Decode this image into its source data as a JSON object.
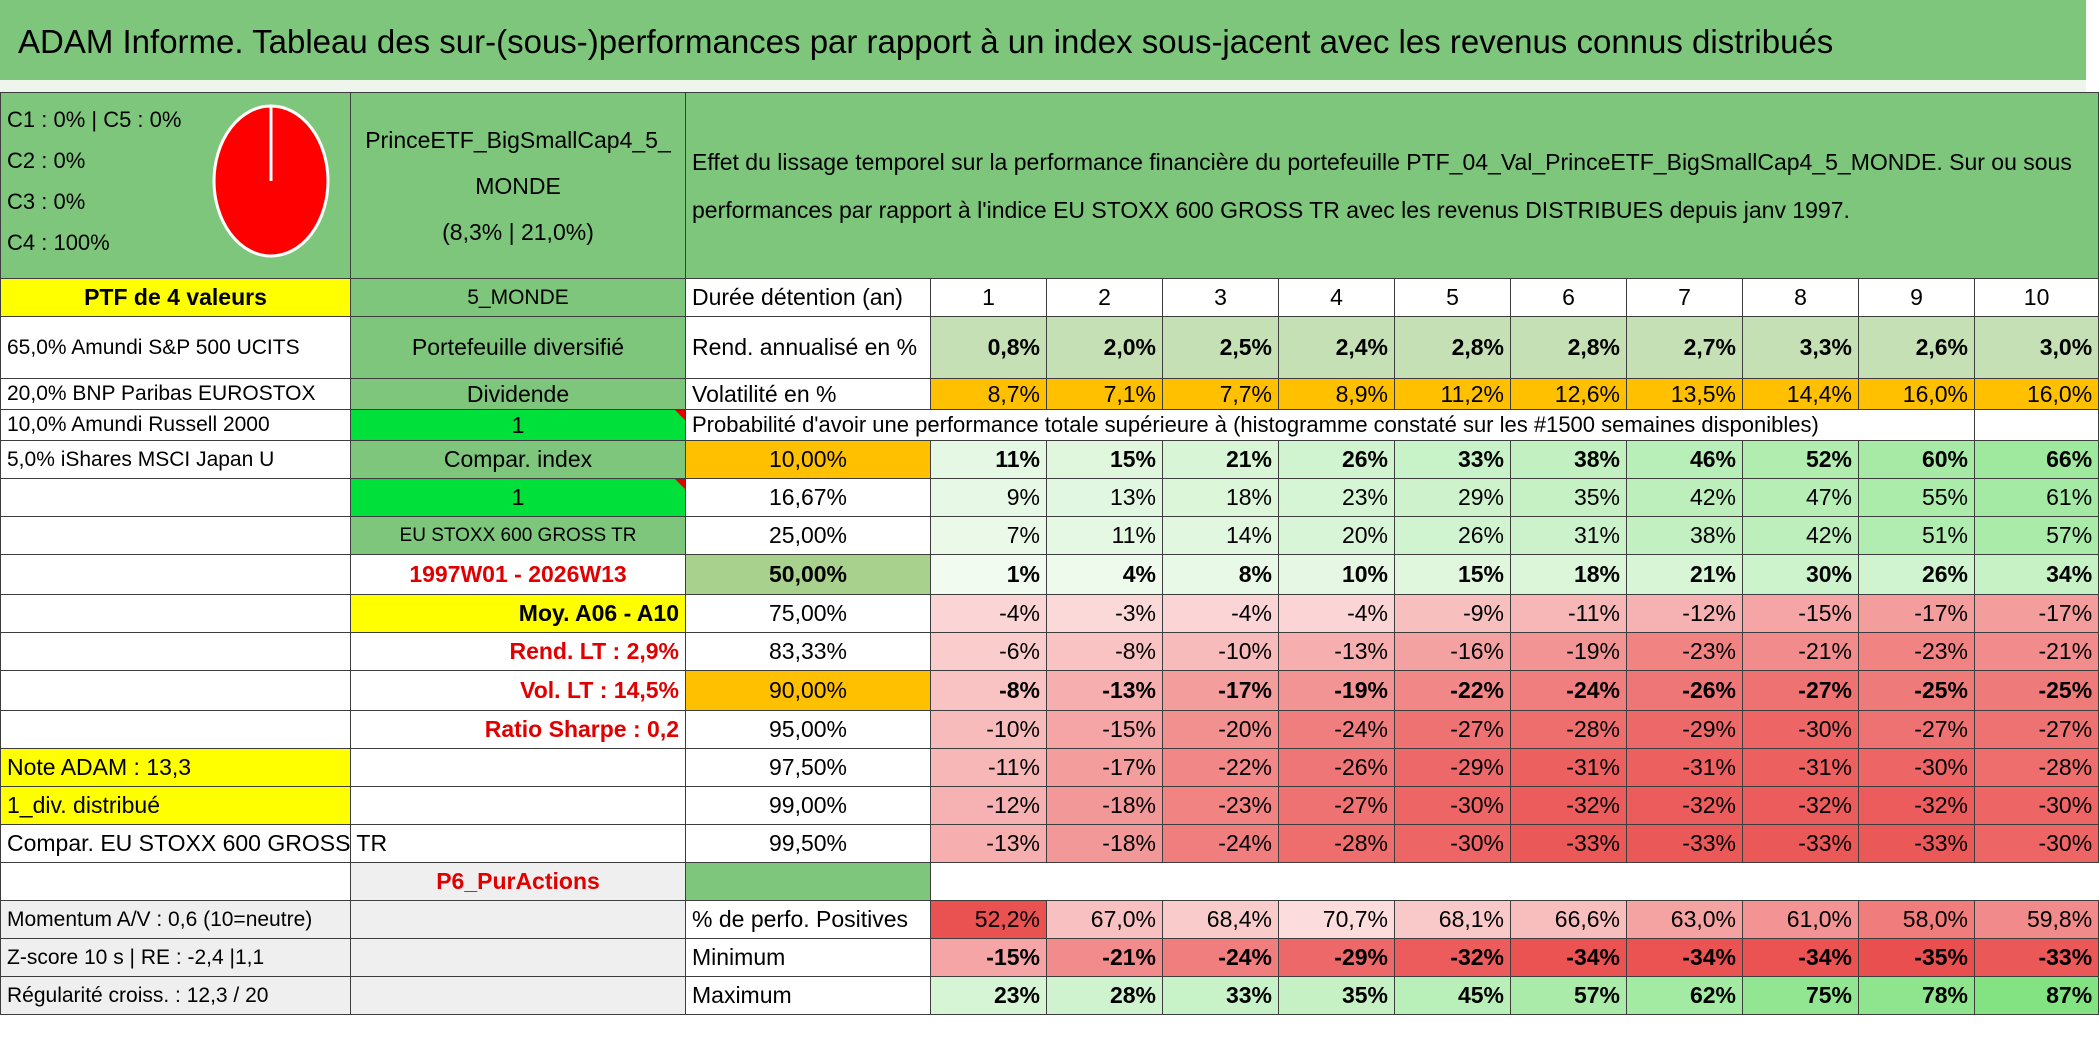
{
  "title": "ADAM Informe. Tableau des sur-(sous-)performances par rapport à un index sous-jacent avec les revenus connus distribués",
  "allocation": {
    "lines": [
      "C1 : 0% | C5 : 0%",
      "C2 : 0%",
      "C3 : 0%",
      "C4 : 100%"
    ],
    "pie": {
      "C4_pct": 100,
      "color": "#ff0000"
    }
  },
  "fund": {
    "name_line1": "PrinceETF_BigSmallCap4_5_",
    "name_line2": "MONDE",
    "stats": "(8,3% | 21,0%)"
  },
  "description": "Effet du lissage temporel sur la performance financière du portefeuille PTF_04_Val_PrinceETF_BigSmallCap4_5_MONDE. Sur ou sous performances par rapport à l'indice EU STOXX 600 GROSS TR avec les revenus DISTRIBUES depuis janv 1997.",
  "left_col": {
    "ptf": "PTF de 4 valeurs",
    "holdings": [
      "65,0% Amundi S&P 500 UCITS",
      "20,0% BNP Paribas EUROSTOX",
      "10,0% Amundi Russell 2000",
      "5,0% iShares MSCI Japan U"
    ],
    "note": "Note ADAM : 13,3",
    "div": "1_div. distribué",
    "compar": "Compar. EU STOXX 600 GROSS TR",
    "momentum": "Momentum A/V : 0,6 (10=neutre)",
    "zscore": "Z-score 10 s | RE : -2,4 |1,1",
    "regularite": "Régularité croiss. : 12,3 / 20"
  },
  "mid_col": {
    "monde": "5_MONDE",
    "diversifie": "Portefeuille diversifié",
    "dividende": "Dividende",
    "one_a": "1",
    "compar_index": "Compar. index",
    "one_b": "1",
    "index": "EU STOXX 600 GROSS TR",
    "period": "1997W01 - 2026W13",
    "moy": "Moy. A06 - A10",
    "rend_lt": "Rend. LT : 2,9%",
    "vol_lt": "Vol. LT : 14,5%",
    "sharpe": "Ratio Sharpe : 0,2",
    "p6": "P6_PurActions"
  },
  "headers": {
    "duree": "Durée détention (an)",
    "years": [
      "1",
      "2",
      "3",
      "4",
      "5",
      "6",
      "7",
      "8",
      "9",
      "10"
    ],
    "rend": "Rend. annualisé en %",
    "vol": "Volatilité en %",
    "prob": "Probabilité d'avoir une performance totale supérieure à (histogramme constaté sur les #1500 semaines disponibles)",
    "pos": "% de perfo. Positives",
    "min": "Minimum",
    "max": "Maximum"
  },
  "rend_values": [
    "0,8%",
    "2,0%",
    "2,5%",
    "2,4%",
    "2,8%",
    "2,8%",
    "2,7%",
    "3,3%",
    "2,6%",
    "3,0%"
  ],
  "vol_values": [
    "8,7%",
    "7,1%",
    "7,7%",
    "8,9%",
    "11,2%",
    "12,6%",
    "13,5%",
    "14,4%",
    "16,0%",
    "16,0%"
  ],
  "percentiles": [
    {
      "label": "10,00%",
      "values": [
        "11%",
        "15%",
        "21%",
        "26%",
        "33%",
        "38%",
        "46%",
        "52%",
        "60%",
        "66%"
      ]
    },
    {
      "label": "16,67%",
      "values": [
        "9%",
        "13%",
        "18%",
        "23%",
        "29%",
        "35%",
        "42%",
        "47%",
        "55%",
        "61%"
      ]
    },
    {
      "label": "25,00%",
      "values": [
        "7%",
        "11%",
        "14%",
        "20%",
        "26%",
        "31%",
        "38%",
        "42%",
        "51%",
        "57%"
      ]
    },
    {
      "label": "50,00%",
      "values": [
        "1%",
        "4%",
        "8%",
        "10%",
        "15%",
        "18%",
        "21%",
        "30%",
        "26%",
        "34%"
      ]
    },
    {
      "label": "75,00%",
      "values": [
        "-4%",
        "-3%",
        "-4%",
        "-4%",
        "-9%",
        "-11%",
        "-12%",
        "-15%",
        "-17%",
        "-17%"
      ]
    },
    {
      "label": "83,33%",
      "values": [
        "-6%",
        "-8%",
        "-10%",
        "-13%",
        "-16%",
        "-19%",
        "-23%",
        "-21%",
        "-23%",
        "-21%"
      ]
    },
    {
      "label": "90,00%",
      "values": [
        "-8%",
        "-13%",
        "-17%",
        "-19%",
        "-22%",
        "-24%",
        "-26%",
        "-27%",
        "-25%",
        "-25%"
      ]
    },
    {
      "label": "95,00%",
      "values": [
        "-10%",
        "-15%",
        "-20%",
        "-24%",
        "-27%",
        "-28%",
        "-29%",
        "-30%",
        "-27%",
        "-27%"
      ]
    },
    {
      "label": "97,50%",
      "values": [
        "-11%",
        "-17%",
        "-22%",
        "-26%",
        "-29%",
        "-31%",
        "-31%",
        "-31%",
        "-30%",
        "-28%"
      ]
    },
    {
      "label": "99,00%",
      "values": [
        "-12%",
        "-18%",
        "-23%",
        "-27%",
        "-30%",
        "-32%",
        "-32%",
        "-32%",
        "-32%",
        "-30%"
      ]
    },
    {
      "label": "99,50%",
      "values": [
        "-13%",
        "-18%",
        "-24%",
        "-28%",
        "-30%",
        "-33%",
        "-33%",
        "-33%",
        "-33%",
        "-30%"
      ]
    }
  ],
  "pos_values": [
    "52,2%",
    "67,0%",
    "68,4%",
    "70,7%",
    "68,1%",
    "66,6%",
    "63,0%",
    "61,0%",
    "58,0%",
    "59,8%"
  ],
  "min_values": [
    "-15%",
    "-21%",
    "-24%",
    "-29%",
    "-32%",
    "-34%",
    "-34%",
    "-34%",
    "-35%",
    "-33%"
  ],
  "max_values": [
    "23%",
    "28%",
    "33%",
    "35%",
    "45%",
    "57%",
    "62%",
    "75%",
    "78%",
    "87%"
  ],
  "colors": {
    "header_green": "#7dc67b",
    "light_green": "#a9d18e",
    "bright_green": "#00e03a",
    "yellow": "#ffff00",
    "orange": "#ffc000",
    "red_text": "#e00000"
  }
}
